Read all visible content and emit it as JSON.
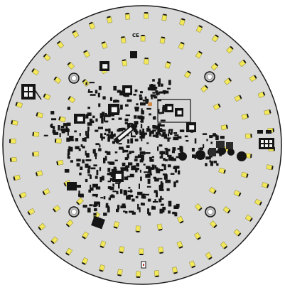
{
  "board": {
    "marking": "CE",
    "colors": {
      "substrate": "#d8d8d8",
      "outline": "#1a1a1a",
      "led": "#f3e85a",
      "component": "#151515",
      "pad": "#f2f2f2",
      "copper": "#d08a4a"
    }
  }
}
